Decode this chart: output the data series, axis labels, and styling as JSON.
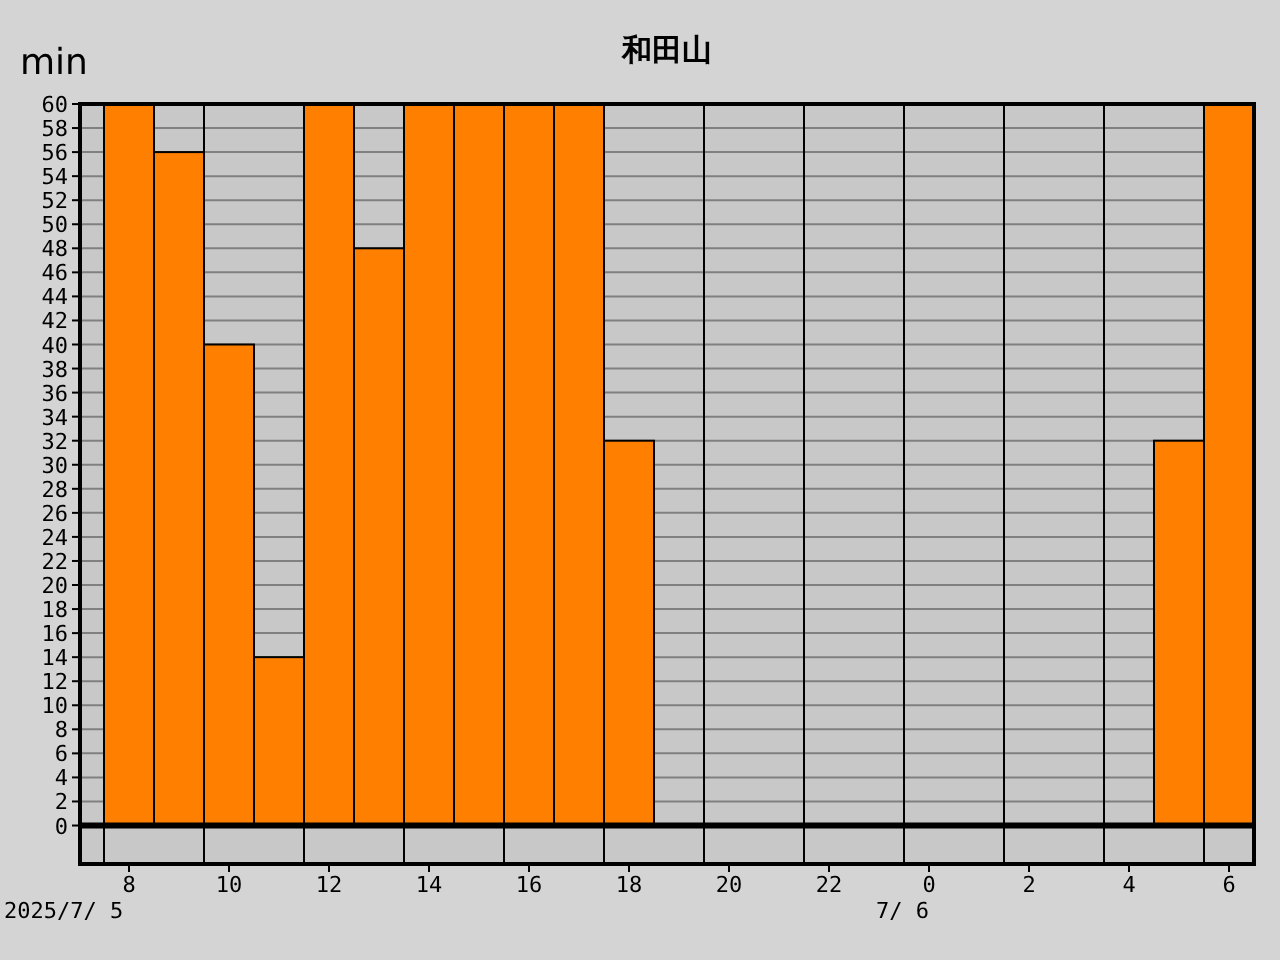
{
  "chart_data": {
    "type": "bar",
    "title": "和田山",
    "ylabel": "min",
    "categories": [
      "8",
      null,
      "10",
      null,
      "12",
      null,
      "14",
      null,
      "16",
      null,
      "18",
      null,
      "20",
      null,
      "22",
      null,
      "0",
      null,
      "2",
      null,
      "4",
      null,
      "6"
    ],
    "values": [
      60,
      56,
      40,
      14,
      60,
      48,
      60,
      60,
      60,
      60,
      32,
      0,
      0,
      0,
      0,
      0,
      0,
      0,
      0,
      0,
      0,
      32,
      60
    ],
    "color": "#ff8000",
    "ylim": [
      -3.2,
      60
    ],
    "yticks": [
      0,
      2,
      4,
      6,
      8,
      10,
      12,
      14,
      16,
      18,
      20,
      22,
      24,
      26,
      28,
      30,
      32,
      34,
      36,
      38,
      40,
      42,
      44,
      46,
      48,
      50,
      52,
      54,
      56,
      58,
      60
    ],
    "grid": true,
    "annotations": [
      "2025/7/ 5",
      "7/ 6"
    ]
  }
}
